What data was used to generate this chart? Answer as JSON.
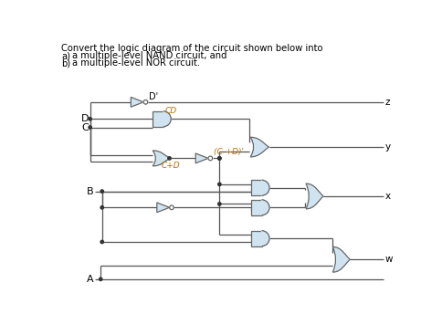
{
  "title_line1": "Convert the logic diagram of the circuit shown below into",
  "title_line2a": "a)",
  "title_line2b": "a multiple-level NAND circuit, and",
  "title_line3a": "b)",
  "title_line3b": "a multiple-level NOR circuit.",
  "gate_fill": "#cfe4f0",
  "gate_edge": "#666666",
  "wire_color": "#555555",
  "dot_color": "#333333",
  "text_black": "#000000",
  "text_orange": "#b8720a",
  "bg_color": "#ffffff",
  "lw": 0.9
}
